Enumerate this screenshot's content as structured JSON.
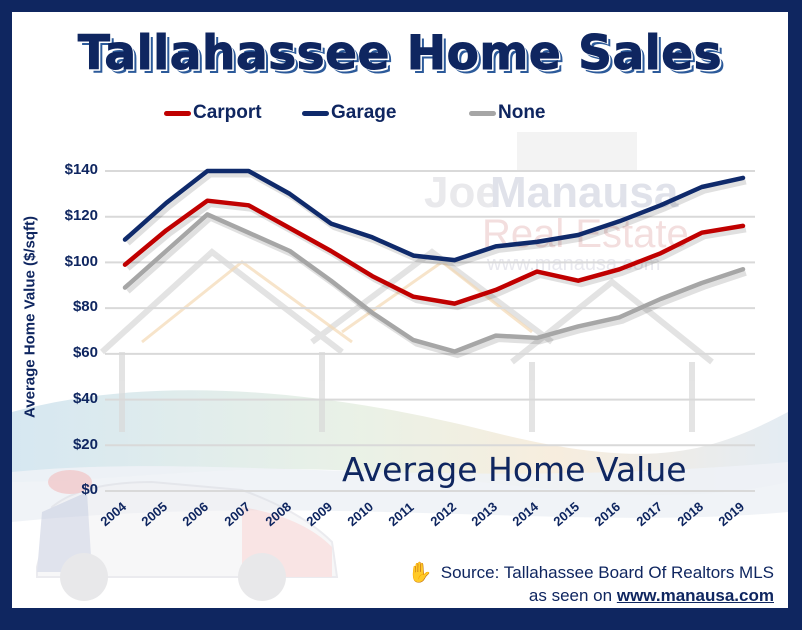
{
  "title": "Tallahassee Home Sales",
  "subtitle": "Average Home Value",
  "legend": [
    {
      "label": "Carport",
      "color": "#c00000"
    },
    {
      "label": "Garage",
      "color": "#0f2a6b"
    },
    {
      "label": "None",
      "color": "#a6a6a6"
    }
  ],
  "source": {
    "icon": "hand-icon",
    "text": "Source: Tallahassee Board Of Realtors MLS",
    "seen_prefix": "as seen on",
    "link_text": "www.manausa.com"
  },
  "watermark": {
    "line1a": "Joe",
    "line1b": "Manausa",
    "line2": "Real Estate",
    "line3": "www.manausa.com"
  },
  "colors": {
    "frame": "#0f2660",
    "text": "#0f2660",
    "carport": "#c00000",
    "garage": "#0f2a6b",
    "none": "#a6a6a6",
    "grid": "#d9d9d9"
  },
  "chart_data": {
    "type": "line",
    "title": "Tallahassee Home Sales",
    "subtitle": "Average Home Value",
    "xlabel": "",
    "ylabel": "Average Home Value ($/sqft)",
    "categories": [
      "2004",
      "2005",
      "2006",
      "2007",
      "2008",
      "2009",
      "2010",
      "2011",
      "2012",
      "2013",
      "2014",
      "2015",
      "2016",
      "2017",
      "2018",
      "2019"
    ],
    "yticks": [
      "$0",
      "$20",
      "$40",
      "$60",
      "$80",
      "$100",
      "$120",
      "$140"
    ],
    "ylim": [
      0,
      140
    ],
    "grid": true,
    "legend_position": "top",
    "series": [
      {
        "name": "Carport",
        "color": "#c00000",
        "values": [
          99,
          114,
          127,
          125,
          115,
          105,
          94,
          85,
          82,
          88,
          96,
          92,
          97,
          104,
          113,
          116
        ]
      },
      {
        "name": "Garage",
        "color": "#0f2a6b",
        "values": [
          110,
          126,
          140,
          140,
          130,
          117,
          111,
          103,
          101,
          107,
          109,
          112,
          118,
          125,
          133,
          137
        ]
      },
      {
        "name": "None",
        "color": "#a6a6a6",
        "values": [
          89,
          105,
          121,
          113,
          105,
          92,
          78,
          66,
          61,
          68,
          67,
          72,
          76,
          84,
          91,
          97
        ]
      }
    ],
    "annotations": [
      "Source: Tallahassee Board Of Realtors MLS",
      "as seen on www.manausa.com"
    ]
  }
}
